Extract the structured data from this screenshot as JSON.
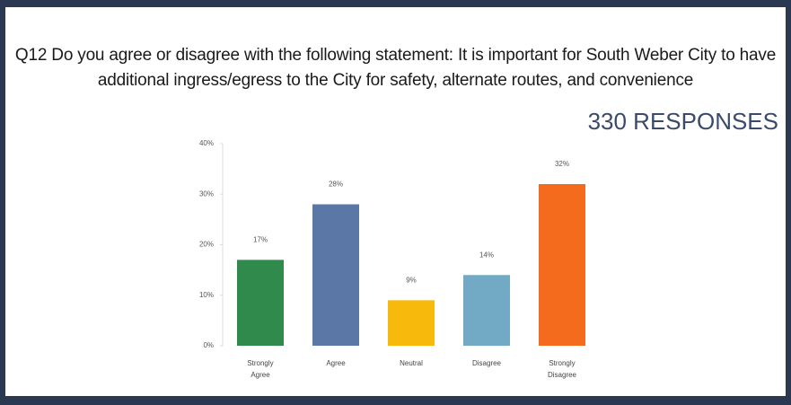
{
  "chart_data": {
    "type": "bar",
    "title": "Q12 Do you agree or disagree with the following statement: It is important for South Weber City to have additional ingress/egress to the City for safety, alternate routes, and convenience",
    "subtitle": "330 RESPONSES",
    "categories": [
      "Strongly Agree",
      "Agree",
      "Neutral",
      "Disagree",
      "Strongly Disagree"
    ],
    "values": [
      17,
      28,
      9,
      14,
      32
    ],
    "value_labels": [
      "17%",
      "28%",
      "9%",
      "14%",
      "32%"
    ],
    "colors": [
      "#2f8a4c",
      "#5a77a6",
      "#f6b90c",
      "#72aac6",
      "#f46b1d"
    ],
    "ylim": [
      0,
      40
    ],
    "yticks": [
      {
        "value": 0,
        "label": "0%"
      },
      {
        "value": 10,
        "label": "10%"
      },
      {
        "value": 20,
        "label": "20%"
      },
      {
        "value": 30,
        "label": "30%"
      },
      {
        "value": 40,
        "label": "40%"
      }
    ],
    "grid": false
  }
}
